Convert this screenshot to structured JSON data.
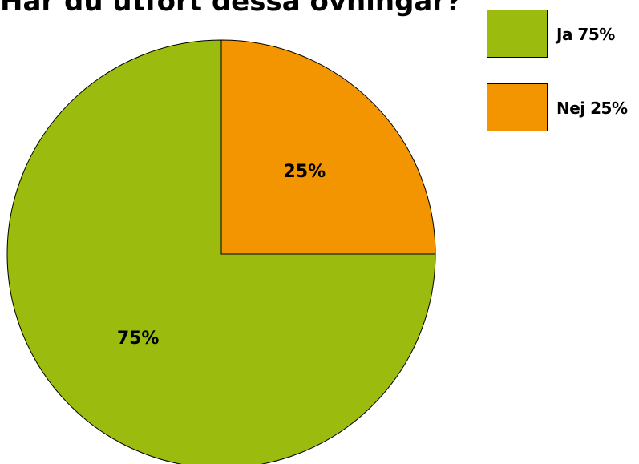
{
  "chart_data": {
    "type": "pie",
    "title": "Har du utfört dessa övningar?",
    "slices": [
      {
        "name": "Ja 75%",
        "value": 75,
        "label": "75%",
        "color": "#9bbb0e"
      },
      {
        "name": "Nej 25%",
        "value": 25,
        "label": "25%",
        "color": "#f39500"
      }
    ],
    "legend_position": "top-right"
  }
}
